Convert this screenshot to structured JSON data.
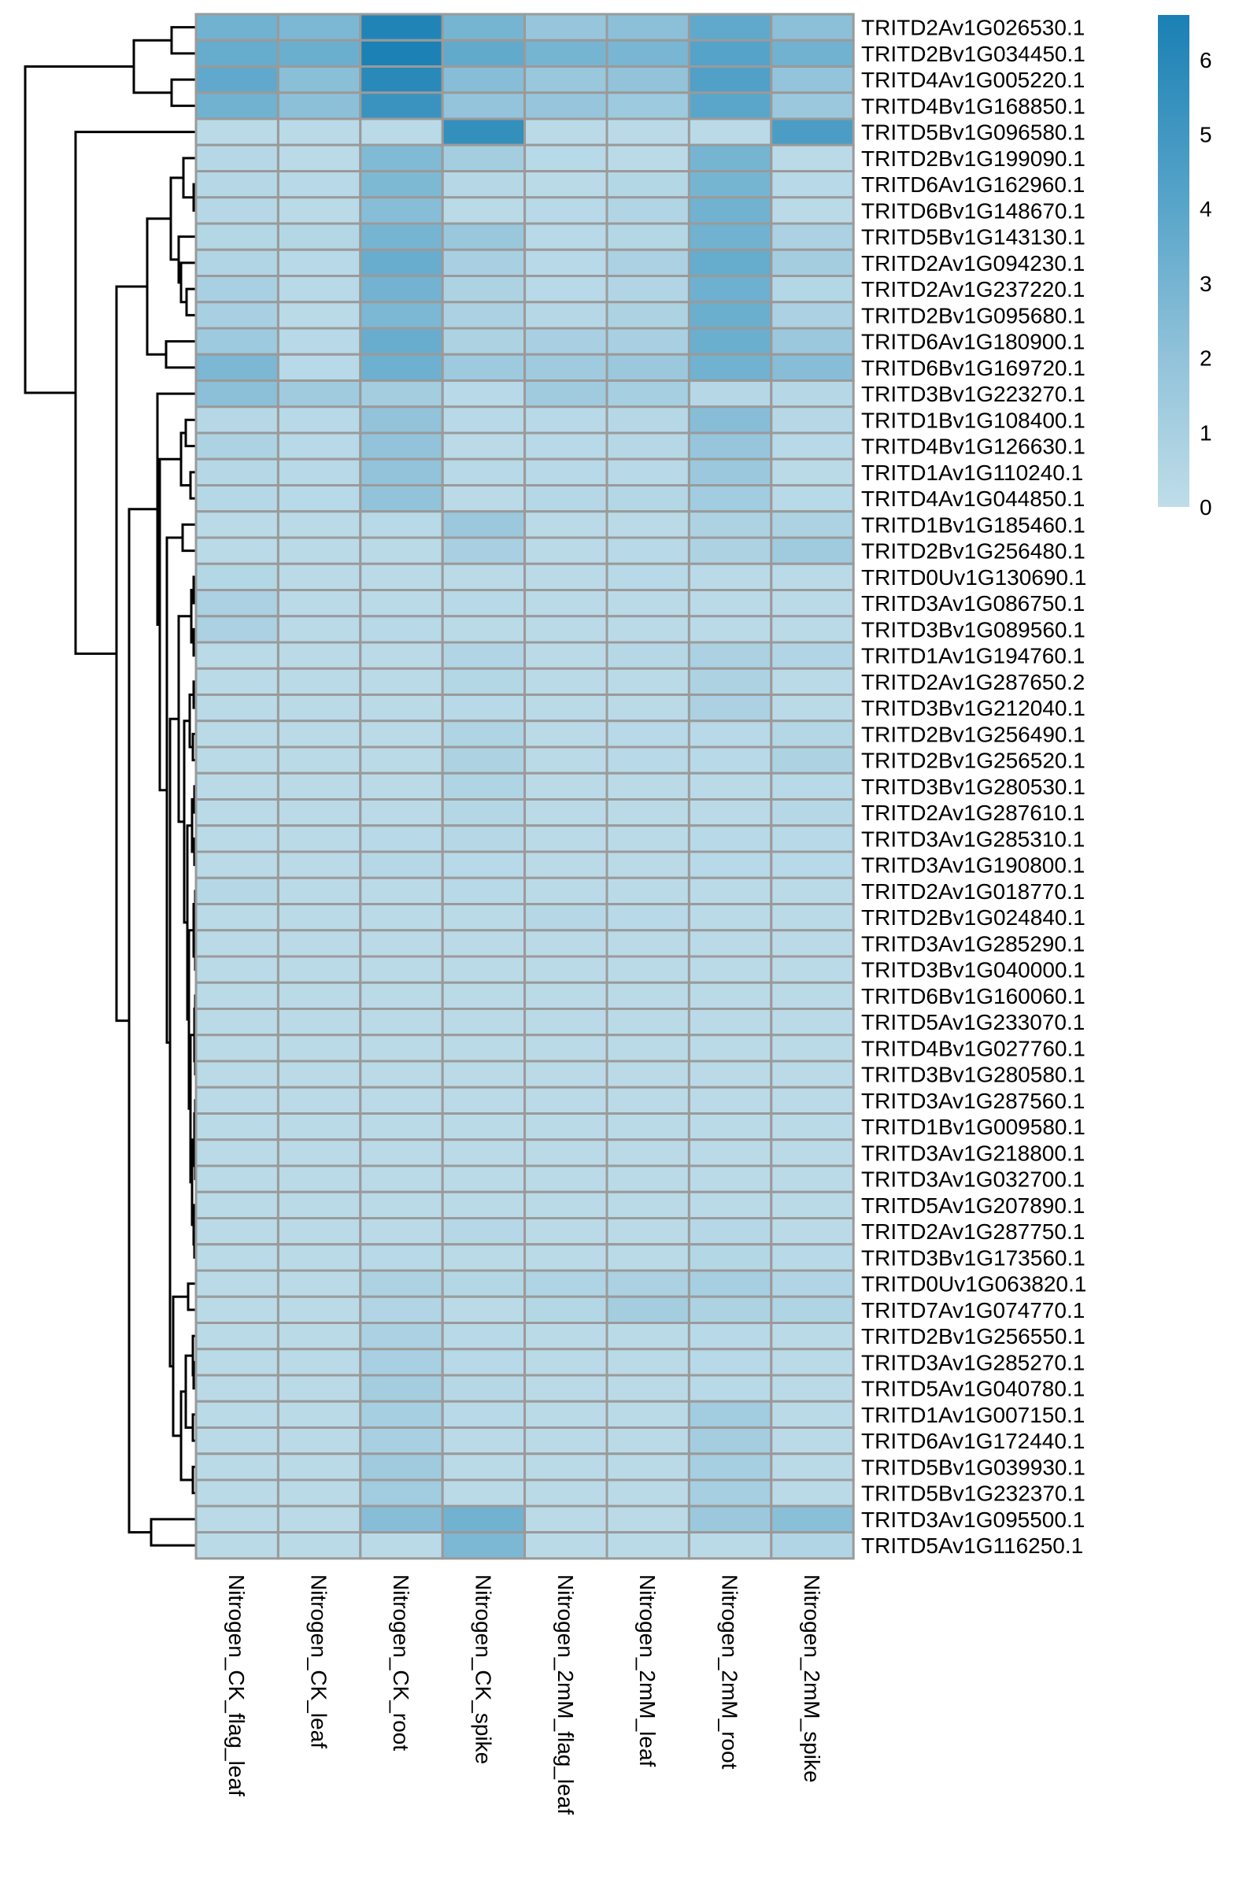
{
  "chart_data": {
    "type": "heatmap",
    "title": "",
    "columns": [
      "Nitrogen_CK_flag_leaf",
      "Nitrogen_CK_leaf",
      "Nitrogen_CK_root",
      "Nitrogen_CK_spike",
      "Nitrogen_2mM_flag_leaf",
      "Nitrogen_2mM_leaf",
      "Nitrogen_2mM_root",
      "Nitrogen_2mM_spike"
    ],
    "rows": [
      "TRITD2Av1G026530.1",
      "TRITD2Bv1G034450.1",
      "TRITD4Av1G005220.1",
      "TRITD4Bv1G168850.1",
      "TRITD5Bv1G096580.1",
      "TRITD2Bv1G199090.1",
      "TRITD6Av1G162960.1",
      "TRITD6Bv1G148670.1",
      "TRITD5Bv1G143130.1",
      "TRITD2Av1G094230.1",
      "TRITD2Av1G237220.1",
      "TRITD2Bv1G095680.1",
      "TRITD6Av1G180900.1",
      "TRITD6Bv1G169720.1",
      "TRITD3Bv1G223270.1",
      "TRITD1Bv1G108400.1",
      "TRITD4Bv1G126630.1",
      "TRITD1Av1G110240.1",
      "TRITD4Av1G044850.1",
      "TRITD1Bv1G185460.1",
      "TRITD2Bv1G256480.1",
      "TRITD0Uv1G130690.1",
      "TRITD3Av1G086750.1",
      "TRITD3Bv1G089560.1",
      "TRITD1Av1G194760.1",
      "TRITD2Av1G287650.2",
      "TRITD3Bv1G212040.1",
      "TRITD2Bv1G256490.1",
      "TRITD2Bv1G256520.1",
      "TRITD3Bv1G280530.1",
      "TRITD2Av1G287610.1",
      "TRITD3Av1G285310.1",
      "TRITD3Av1G190800.1",
      "TRITD2Av1G018770.1",
      "TRITD2Bv1G024840.1",
      "TRITD3Av1G285290.1",
      "TRITD3Bv1G040000.1",
      "TRITD6Bv1G160060.1",
      "TRITD5Av1G233070.1",
      "TRITD4Bv1G027760.1",
      "TRITD3Bv1G280580.1",
      "TRITD3Av1G287560.1",
      "TRITD1Bv1G009580.1",
      "TRITD3Av1G218800.1",
      "TRITD3Av1G032700.1",
      "TRITD5Av1G207890.1",
      "TRITD2Av1G287750.1",
      "TRITD3Bv1G173560.1",
      "TRITD0Uv1G063820.1",
      "TRITD7Av1G074770.1",
      "TRITD2Bv1G256550.1",
      "TRITD3Av1G285270.1",
      "TRITD5Av1G040780.1",
      "TRITD1Av1G007150.1",
      "TRITD6Av1G172440.1",
      "TRITD5Bv1G039930.1",
      "TRITD5Bv1G232370.1",
      "TRITD3Av1G095500.1",
      "TRITD5Av1G116250.1"
    ],
    "values": [
      [
        3.2,
        2.8,
        6.3,
        3.0,
        1.8,
        2.2,
        3.8,
        2.2
      ],
      [
        3.6,
        3.4,
        6.5,
        3.7,
        3.0,
        2.9,
        4.2,
        3.2
      ],
      [
        3.8,
        2.3,
        6.0,
        2.4,
        1.7,
        2.0,
        4.4,
        1.9
      ],
      [
        3.2,
        2.2,
        5.3,
        1.9,
        1.8,
        1.5,
        4.0,
        1.6
      ],
      [
        0.2,
        0.2,
        0.2,
        5.6,
        0.2,
        0.2,
        0.2,
        4.6
      ],
      [
        0.4,
        0.2,
        2.6,
        1.2,
        0.3,
        0.2,
        3.0,
        0.2
      ],
      [
        0.4,
        0.3,
        2.7,
        0.4,
        0.2,
        0.5,
        3.0,
        0.3
      ],
      [
        0.4,
        0.2,
        2.4,
        0.2,
        0.3,
        0.6,
        3.2,
        0.2
      ],
      [
        0.5,
        0.5,
        3.0,
        1.7,
        0.3,
        0.5,
        3.2,
        0.9
      ],
      [
        0.6,
        0.3,
        3.5,
        1.0,
        0.3,
        0.9,
        3.6,
        1.2
      ],
      [
        1.0,
        0.3,
        3.1,
        0.8,
        0.3,
        0.6,
        3.3,
        0.5
      ],
      [
        1.0,
        0.2,
        2.8,
        0.9,
        0.4,
        0.8,
        3.4,
        0.9
      ],
      [
        1.5,
        0.3,
        3.5,
        0.8,
        1.0,
        1.0,
        3.4,
        1.6
      ],
      [
        2.8,
        0.3,
        3.3,
        1.5,
        1.4,
        1.6,
        3.2,
        2.4
      ],
      [
        2.2,
        1.4,
        1.2,
        0.3,
        1.4,
        1.1,
        0.4,
        0.4
      ],
      [
        0.4,
        0.3,
        2.0,
        0.3,
        0.3,
        0.4,
        2.4,
        0.4
      ],
      [
        0.8,
        0.3,
        2.0,
        0.2,
        0.3,
        0.4,
        1.8,
        0.3
      ],
      [
        0.4,
        0.3,
        2.0,
        0.3,
        0.3,
        0.3,
        1.6,
        0.2
      ],
      [
        0.4,
        0.3,
        2.0,
        0.2,
        0.4,
        0.5,
        1.3,
        0.3
      ],
      [
        0.2,
        0.2,
        0.3,
        1.6,
        0.2,
        0.2,
        0.8,
        0.8
      ],
      [
        0.2,
        0.2,
        0.2,
        1.0,
        0.2,
        0.3,
        0.8,
        1.4
      ],
      [
        0.5,
        0.2,
        0.2,
        0.2,
        0.2,
        0.3,
        0.2,
        0.2
      ],
      [
        0.9,
        0.2,
        0.2,
        0.3,
        0.2,
        0.2,
        0.2,
        0.2
      ],
      [
        0.9,
        0.2,
        0.3,
        0.2,
        0.2,
        0.2,
        0.2,
        0.2
      ],
      [
        0.2,
        0.2,
        0.2,
        0.6,
        0.2,
        0.4,
        0.9,
        0.6
      ],
      [
        0.2,
        0.2,
        0.2,
        0.5,
        0.2,
        0.2,
        0.8,
        0.2
      ],
      [
        0.2,
        0.2,
        0.2,
        0.3,
        0.2,
        0.2,
        0.9,
        0.2
      ],
      [
        0.2,
        0.2,
        0.2,
        0.7,
        0.2,
        0.3,
        0.3,
        0.5
      ],
      [
        0.2,
        0.2,
        0.2,
        0.8,
        0.2,
        0.3,
        0.3,
        0.8
      ],
      [
        0.2,
        0.2,
        0.2,
        0.7,
        0.2,
        0.2,
        0.2,
        0.3
      ],
      [
        0.2,
        0.2,
        0.2,
        0.5,
        0.2,
        0.2,
        0.2,
        0.4
      ],
      [
        0.2,
        0.2,
        0.3,
        0.4,
        0.2,
        0.2,
        0.3,
        0.3
      ],
      [
        0.2,
        0.2,
        0.4,
        0.3,
        0.2,
        0.2,
        0.3,
        0.3
      ],
      [
        0.4,
        0.2,
        0.2,
        0.3,
        0.2,
        0.2,
        0.2,
        0.2
      ],
      [
        0.2,
        0.2,
        0.2,
        0.2,
        0.4,
        0.3,
        0.2,
        0.2
      ],
      [
        0.2,
        0.2,
        0.2,
        0.2,
        0.2,
        0.2,
        0.2,
        0.2
      ],
      [
        0.2,
        0.2,
        0.2,
        0.2,
        0.2,
        0.2,
        0.2,
        0.2
      ],
      [
        0.2,
        0.2,
        0.2,
        0.2,
        0.2,
        0.2,
        0.2,
        0.2
      ],
      [
        0.2,
        0.2,
        0.2,
        0.2,
        0.2,
        0.2,
        0.2,
        0.2
      ],
      [
        0.2,
        0.2,
        0.2,
        0.2,
        0.2,
        0.2,
        0.2,
        0.2
      ],
      [
        0.2,
        0.2,
        0.2,
        0.2,
        0.2,
        0.2,
        0.2,
        0.2
      ],
      [
        0.2,
        0.2,
        0.2,
        0.2,
        0.2,
        0.2,
        0.2,
        0.2
      ],
      [
        0.2,
        0.2,
        0.2,
        0.2,
        0.2,
        0.2,
        0.2,
        0.2
      ],
      [
        0.2,
        0.2,
        0.2,
        0.2,
        0.2,
        0.2,
        0.2,
        0.2
      ],
      [
        0.2,
        0.2,
        0.2,
        0.2,
        0.2,
        0.2,
        0.2,
        0.2
      ],
      [
        0.2,
        0.2,
        0.2,
        0.2,
        0.2,
        0.2,
        0.2,
        0.2
      ],
      [
        0.2,
        0.2,
        0.2,
        0.4,
        0.2,
        0.2,
        0.4,
        0.2
      ],
      [
        0.2,
        0.2,
        0.3,
        0.2,
        0.2,
        0.2,
        0.5,
        0.3
      ],
      [
        0.2,
        0.2,
        0.8,
        0.5,
        0.7,
        0.9,
        1.1,
        0.6
      ],
      [
        0.2,
        0.2,
        0.6,
        0.2,
        0.5,
        1.2,
        0.8,
        0.7
      ],
      [
        0.2,
        0.2,
        0.9,
        0.3,
        0.2,
        0.2,
        0.3,
        0.2
      ],
      [
        0.2,
        0.2,
        1.0,
        0.3,
        0.2,
        0.2,
        0.3,
        0.2
      ],
      [
        0.2,
        0.2,
        1.2,
        0.4,
        0.2,
        0.2,
        0.3,
        0.2
      ],
      [
        0.2,
        0.2,
        1.1,
        0.3,
        0.2,
        0.2,
        1.3,
        0.2
      ],
      [
        0.2,
        0.2,
        1.0,
        0.2,
        0.2,
        0.2,
        1.2,
        0.2
      ],
      [
        0.2,
        0.2,
        1.4,
        0.2,
        0.2,
        0.2,
        1.1,
        0.2
      ],
      [
        0.2,
        0.2,
        1.3,
        0.2,
        0.2,
        0.2,
        1.1,
        0.2
      ],
      [
        0.2,
        0.2,
        2.4,
        3.2,
        0.2,
        0.2,
        1.6,
        2.3
      ],
      [
        0.2,
        0.2,
        0.2,
        2.8,
        0.2,
        0.2,
        0.2,
        0.6
      ]
    ],
    "colorbar": {
      "min": 0,
      "max": 6.6,
      "ticks": [
        "0",
        "1",
        "2",
        "3",
        "4",
        "5",
        "6"
      ]
    },
    "colors": {
      "low": "#bfdde9",
      "mid_low": "#92c3da",
      "mid_high": "#5aa6ca",
      "high": "#1a80b4",
      "grid": "#9a9a9a"
    },
    "row_dendrogram": true,
    "legend": "right"
  }
}
